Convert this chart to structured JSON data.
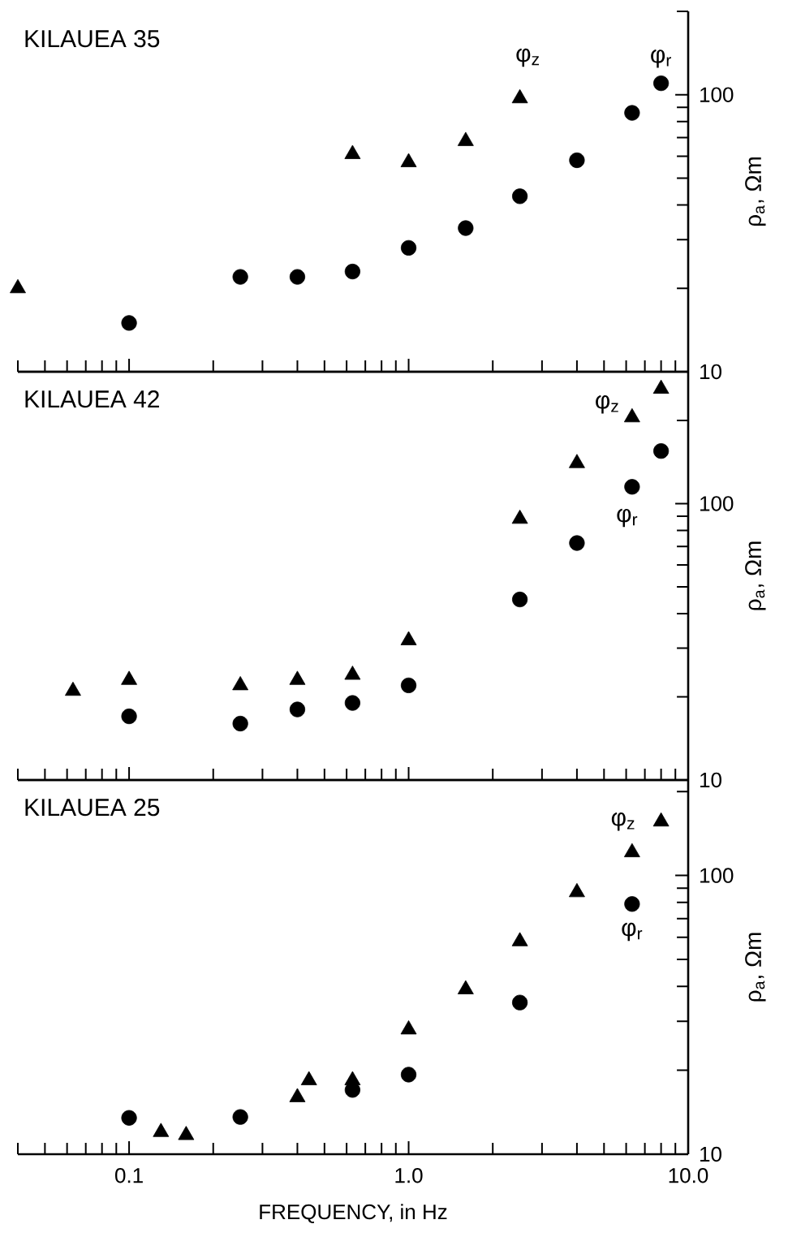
{
  "chart_data": [
    {
      "type": "scatter",
      "title": "KILAUEA 35",
      "ylabel": "ρ$_{a}$,  Ωm",
      "log": "xy",
      "xlim": [
        0.04,
        10
      ],
      "ylim": [
        10,
        200
      ],
      "xticks": [
        {
          "value": 0.1,
          "label": null
        },
        {
          "value": 1,
          "label": null
        },
        {
          "value": 10,
          "label": null
        }
      ],
      "yticks": [
        10,
        100
      ],
      "tick_labels": "y",
      "series": [
        {
          "name": "φ$_{z}$",
          "color": "#000000",
          "marker": "triangle",
          "x": [
            0.04,
            0.63,
            1.0,
            1.6,
            2.5
          ],
          "values": [
            20,
            61,
            57,
            68,
            97
          ]
        },
        {
          "name": "φ$_{r}$",
          "color": "#000000",
          "marker": "circle",
          "x": [
            0.1,
            0.25,
            0.4,
            0.63,
            1.0,
            1.6,
            2.5,
            4.0,
            6.3,
            8.0
          ],
          "values": [
            15,
            22,
            22,
            23,
            28,
            33,
            43,
            58,
            86,
            110
          ]
        }
      ]
    },
    {
      "type": "scatter",
      "title": "KILAUEA 42",
      "ylabel": "ρ$_{a}$,  Ωm",
      "log": "xy",
      "xlim": [
        0.04,
        10
      ],
      "ylim": [
        10,
        300
      ],
      "xticks": [
        {
          "value": 0.1,
          "label": null
        },
        {
          "value": 1,
          "label": null
        },
        {
          "value": 10,
          "label": null
        }
      ],
      "yticks": [
        10,
        100
      ],
      "tick_labels": "y",
      "series": [
        {
          "name": "φ$_{z}$",
          "color": "#000000",
          "marker": "triangle",
          "x": [
            0.063,
            0.1,
            0.25,
            0.4,
            0.63,
            1.0,
            2.5,
            4.0,
            6.3,
            8.0
          ],
          "values": [
            21,
            23,
            22,
            23,
            24,
            32,
            88,
            140,
            205,
            260
          ]
        },
        {
          "name": "φ$_{r}$",
          "color": "#000000",
          "marker": "circle",
          "x": [
            0.1,
            0.25,
            0.4,
            0.63,
            1.0,
            2.5,
            4.0,
            6.3,
            8.0
          ],
          "values": [
            17,
            16,
            18,
            19,
            22,
            45,
            72,
            115,
            155
          ]
        }
      ]
    },
    {
      "type": "scatter",
      "title": "KILAUEA 25",
      "xlabel": "FREQUENCY,   in  Hz",
      "ylabel": "ρ$_{a}$,  Ωm",
      "log": "xy",
      "xlim": [
        0.04,
        10
      ],
      "ylim": [
        10,
        220
      ],
      "xticks": [
        {
          "value": 0.1,
          "label": "0.1"
        },
        {
          "value": 1,
          "label": "1.0"
        },
        {
          "value": 10,
          "label": "10.0"
        }
      ],
      "yticks": [
        10,
        100
      ],
      "series": [
        {
          "name": "φ$_{z}$",
          "color": "#000000",
          "marker": "triangle",
          "x": [
            0.13,
            0.16,
            0.4,
            0.44,
            0.63,
            1.0,
            1.6,
            2.5,
            4.0,
            6.3,
            8.0
          ],
          "values": [
            12,
            11.7,
            16,
            18.4,
            18.4,
            28,
            39,
            58,
            87,
            121,
            156
          ]
        },
        {
          "name": "φ$_{r}$",
          "color": "#000000",
          "marker": "circle",
          "x": [
            0.1,
            0.25,
            0.63,
            1.0,
            2.5,
            6.3
          ],
          "values": [
            13.5,
            13.6,
            17,
            19.3,
            35,
            79
          ]
        }
      ]
    }
  ]
}
